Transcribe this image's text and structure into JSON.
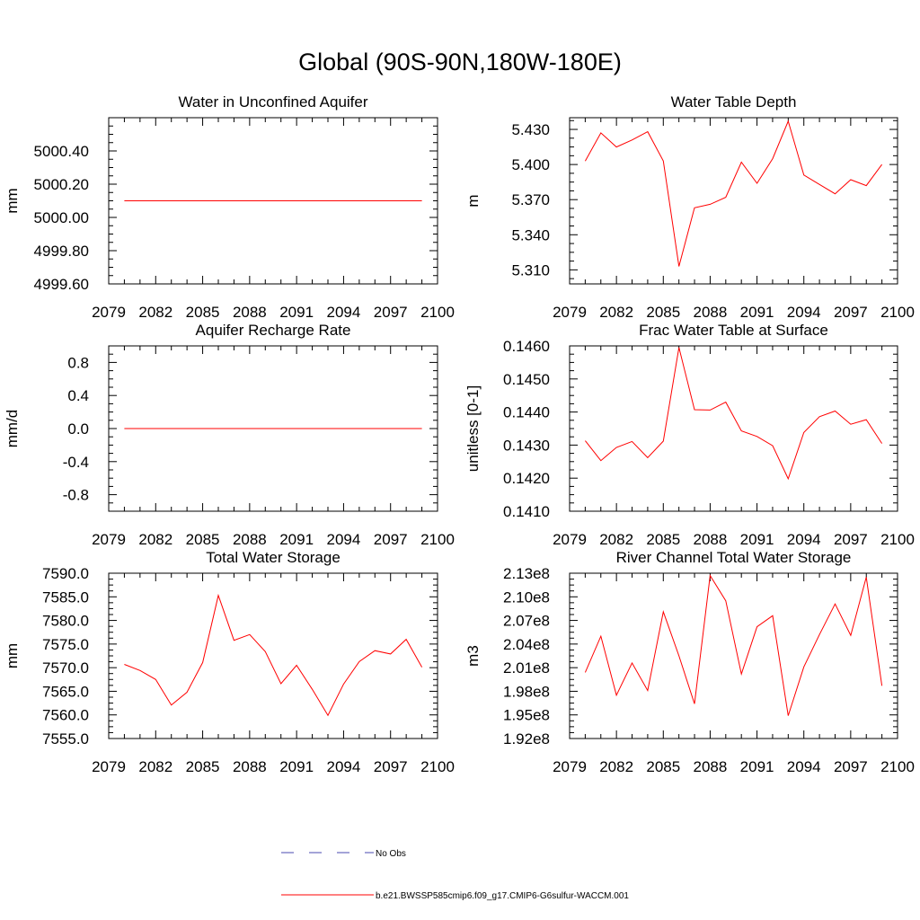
{
  "figure": {
    "title": "Global (90S-90N,180W-180E)",
    "series_color": "#ff0000",
    "obs_color": "#4a4ab0",
    "legend": {
      "obs_label": "No Obs",
      "model_label": "b.e21.BWSSP585cmip6.f09_g17.CMIP6-G6sulfur-WACCM.001"
    }
  },
  "chart_data": [
    {
      "type": "line",
      "title": "Water in Unconfined Aquifer",
      "ylabel": "mm",
      "xlim": [
        2079,
        2100
      ],
      "xticks": [
        "2079",
        "2082",
        "2085",
        "2088",
        "2091",
        "2094",
        "2097",
        "2100"
      ],
      "ylim": [
        4999.6,
        5000.6
      ],
      "yticks": [
        "4999.60",
        "4999.80",
        "5000.00",
        "5000.20",
        "5000.40"
      ],
      "x": [
        2080,
        2081,
        2082,
        2083,
        2084,
        2085,
        2086,
        2087,
        2088,
        2089,
        2090,
        2091,
        2092,
        2093,
        2094,
        2095,
        2096,
        2097,
        2098,
        2099
      ],
      "values": [
        5000.1,
        5000.1,
        5000.1,
        5000.1,
        5000.1,
        5000.1,
        5000.1,
        5000.1,
        5000.1,
        5000.1,
        5000.1,
        5000.1,
        5000.1,
        5000.1,
        5000.1,
        5000.1,
        5000.1,
        5000.1,
        5000.1,
        5000.1
      ]
    },
    {
      "type": "line",
      "title": "Water Table Depth",
      "ylabel": "m",
      "xlim": [
        2079,
        2100
      ],
      "xticks": [
        "2079",
        "2082",
        "2085",
        "2088",
        "2091",
        "2094",
        "2097",
        "2100"
      ],
      "ylim": [
        5.298,
        5.44
      ],
      "yticks": [
        "5.310",
        "5.340",
        "5.370",
        "5.400",
        "5.430"
      ],
      "x": [
        2080,
        2081,
        2082,
        2083,
        2084,
        2085,
        2086,
        2087,
        2088,
        2089,
        2090,
        2091,
        2092,
        2093,
        2094,
        2095,
        2096,
        2097,
        2098,
        2099
      ],
      "values": [
        5.403,
        5.427,
        5.415,
        5.421,
        5.428,
        5.403,
        5.313,
        5.363,
        5.366,
        5.372,
        5.402,
        5.384,
        5.405,
        5.437,
        5.391,
        5.383,
        5.375,
        5.387,
        5.382,
        5.4
      ]
    },
    {
      "type": "line",
      "title": "Aquifer Recharge Rate",
      "ylabel": "mm/d",
      "xlim": [
        2079,
        2100
      ],
      "xticks": [
        "2079",
        "2082",
        "2085",
        "2088",
        "2091",
        "2094",
        "2097",
        "2100"
      ],
      "ylim": [
        -1.0,
        1.0
      ],
      "yticks": [
        "-0.8",
        "-0.4",
        "0.0",
        "0.4",
        "0.8"
      ],
      "x": [
        2080,
        2081,
        2082,
        2083,
        2084,
        2085,
        2086,
        2087,
        2088,
        2089,
        2090,
        2091,
        2092,
        2093,
        2094,
        2095,
        2096,
        2097,
        2098,
        2099
      ],
      "values": [
        0,
        0,
        0,
        0,
        0,
        0,
        0,
        0,
        0,
        0,
        0,
        0,
        0,
        0,
        0,
        0,
        0,
        0,
        0,
        0
      ]
    },
    {
      "type": "line",
      "title": "Frac Water Table at Surface",
      "ylabel": "unitless [0-1]",
      "xlim": [
        2079,
        2100
      ],
      "xticks": [
        "2079",
        "2082",
        "2085",
        "2088",
        "2091",
        "2094",
        "2097",
        "2100"
      ],
      "ylim": [
        0.141,
        0.146
      ],
      "yticks": [
        "0.1410",
        "0.1420",
        "0.1430",
        "0.1440",
        "0.1450",
        "0.1460"
      ],
      "x": [
        2080,
        2081,
        2082,
        2083,
        2084,
        2085,
        2086,
        2087,
        2088,
        2089,
        2090,
        2091,
        2092,
        2093,
        2094,
        2095,
        2096,
        2097,
        2098,
        2099
      ],
      "values": [
        0.14313,
        0.14253,
        0.14293,
        0.14311,
        0.14262,
        0.14312,
        0.14595,
        0.14407,
        0.14406,
        0.1443,
        0.14343,
        0.14326,
        0.14298,
        0.14198,
        0.14338,
        0.14386,
        0.14403,
        0.14363,
        0.14377,
        0.14305
      ]
    },
    {
      "type": "line",
      "title": "Total Water Storage",
      "ylabel": "mm",
      "xlim": [
        2079,
        2100
      ],
      "xticks": [
        "2079",
        "2082",
        "2085",
        "2088",
        "2091",
        "2094",
        "2097",
        "2100"
      ],
      "ylim": [
        7555.0,
        7590.0
      ],
      "yticks": [
        "7555.0",
        "7560.0",
        "7565.0",
        "7570.0",
        "7575.0",
        "7580.0",
        "7585.0",
        "7590.0"
      ],
      "x": [
        2080,
        2081,
        2082,
        2083,
        2084,
        2085,
        2086,
        2087,
        2088,
        2089,
        2090,
        2091,
        2092,
        2093,
        2094,
        2095,
        2096,
        2097,
        2098,
        2099
      ],
      "values": [
        7570.7,
        7569.4,
        7567.5,
        7562.1,
        7564.8,
        7571.1,
        7585.3,
        7575.8,
        7577.0,
        7573.4,
        7566.6,
        7570.5,
        7565.4,
        7559.9,
        7566.5,
        7571.3,
        7573.6,
        7572.9,
        7576.0,
        7570.1
      ]
    },
    {
      "type": "line",
      "title": "River Channel Total Water Storage",
      "ylabel": "m3",
      "xlim": [
        2079,
        2100
      ],
      "xticks": [
        "2079",
        "2082",
        "2085",
        "2088",
        "2091",
        "2094",
        "2097",
        "2100"
      ],
      "ylim": [
        192000000,
        213000000
      ],
      "yticks": [
        "1.92e8",
        "1.95e8",
        "1.98e8",
        "2.01e8",
        "2.04e8",
        "2.07e8",
        "2.10e8",
        "2.13e8"
      ],
      "x": [
        2080,
        2081,
        2082,
        2083,
        2084,
        2085,
        2086,
        2087,
        2088,
        2089,
        2090,
        2091,
        2092,
        2093,
        2094,
        2095,
        2096,
        2097,
        2098,
        2099
      ],
      "values": [
        200400000,
        205000000,
        197500000,
        201600000,
        198100000,
        208100000,
        202500000,
        196400000,
        212700000,
        209500000,
        200200000,
        206200000,
        207600000,
        194900000,
        201100000,
        205200000,
        209100000,
        205100000,
        212500000,
        198700000
      ]
    }
  ]
}
